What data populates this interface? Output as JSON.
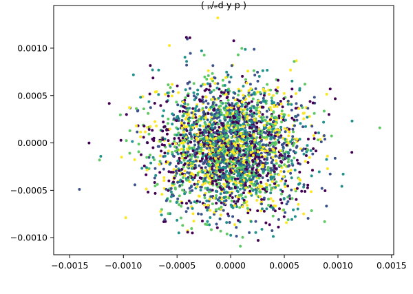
{
  "chart_data": {
    "type": "scatter",
    "title": "(ρ_{ed} ... by ... p ... )",
    "title_visible_fragment": "( ₚ/ₑd                y        p                                 )",
    "xlabel": "",
    "ylabel": "",
    "xlim": [
      -0.00165,
      0.00152
    ],
    "ylim": [
      -0.00118,
      0.00145
    ],
    "x_ticks": [
      -0.0015,
      -0.001,
      -0.0005,
      0.0,
      0.0005,
      0.001,
      0.0015
    ],
    "x_tick_labels": [
      "−0.0015",
      "−0.0010",
      "−0.0005",
      "0.0000",
      "0.0005",
      "0.0010",
      "0.0015"
    ],
    "y_ticks": [
      -0.001,
      -0.0005,
      0.0,
      0.0005,
      0.001
    ],
    "y_tick_labels": [
      "−0.0010",
      "−0.0005",
      "0.0000",
      "0.0005",
      "0.0010"
    ],
    "grid": false,
    "legend": "none",
    "colormap": [
      "#440154",
      "#3b528b",
      "#21918c",
      "#5ec962",
      "#fde725"
    ],
    "distribution": {
      "center": [
        0.0,
        -5e-05
      ],
      "std": [
        0.00035,
        0.00035
      ],
      "n_points": 3000,
      "extremes": [
        [
          -0.00141,
          -0.00049
        ],
        [
          0.00139,
          0.00016
        ],
        [
          -0.00012,
          0.00132
        ],
        [
          9e-05,
          -0.00109
        ],
        [
          0.00113,
          -0.0001
        ],
        [
          -0.00132,
          0.0
        ]
      ]
    }
  }
}
